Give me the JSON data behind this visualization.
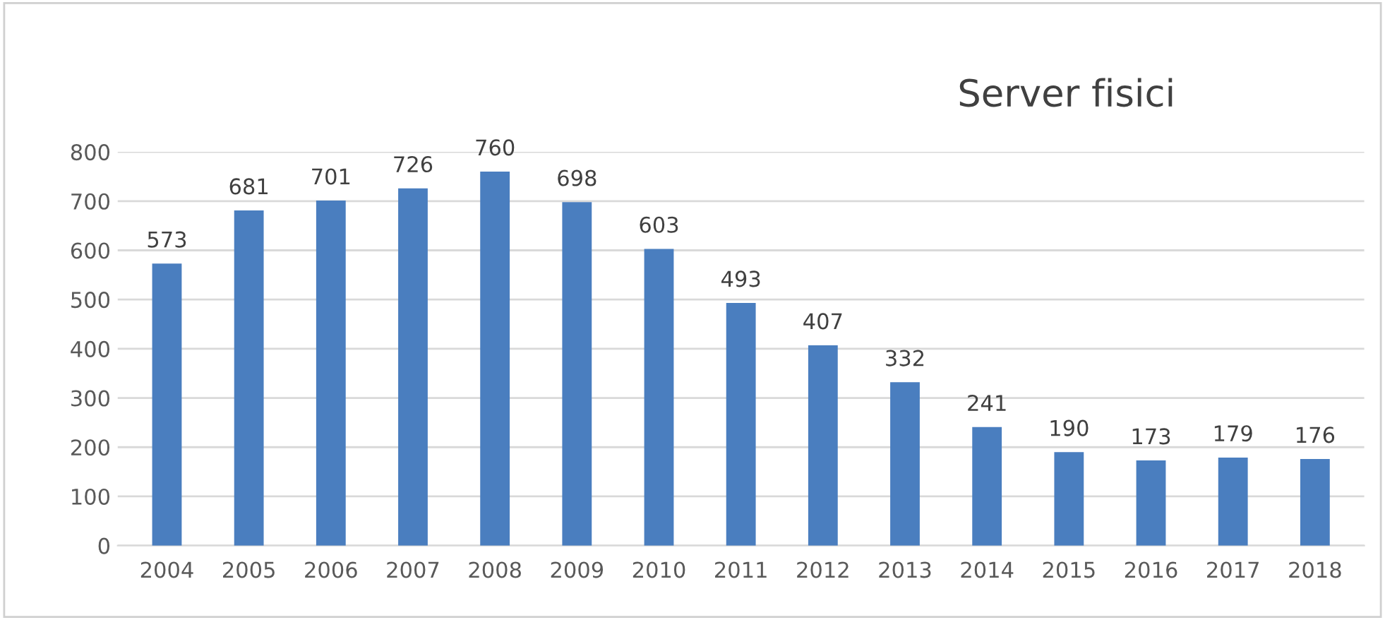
{
  "chart_data": {
    "type": "bar",
    "title": "Server fisici",
    "categories": [
      "2004",
      "2005",
      "2006",
      "2007",
      "2008",
      "2009",
      "2010",
      "2011",
      "2012",
      "2013",
      "2014",
      "2015",
      "2016",
      "2017",
      "2018"
    ],
    "values": [
      573,
      681,
      701,
      726,
      760,
      698,
      603,
      493,
      407,
      332,
      241,
      190,
      173,
      179,
      176
    ],
    "color": "#4a7ebf",
    "ylim": [
      0,
      800
    ],
    "yticks": [
      0,
      100,
      200,
      300,
      400,
      500,
      600,
      700,
      800
    ],
    "grid": "y",
    "data_labels": true,
    "legend": false
  }
}
